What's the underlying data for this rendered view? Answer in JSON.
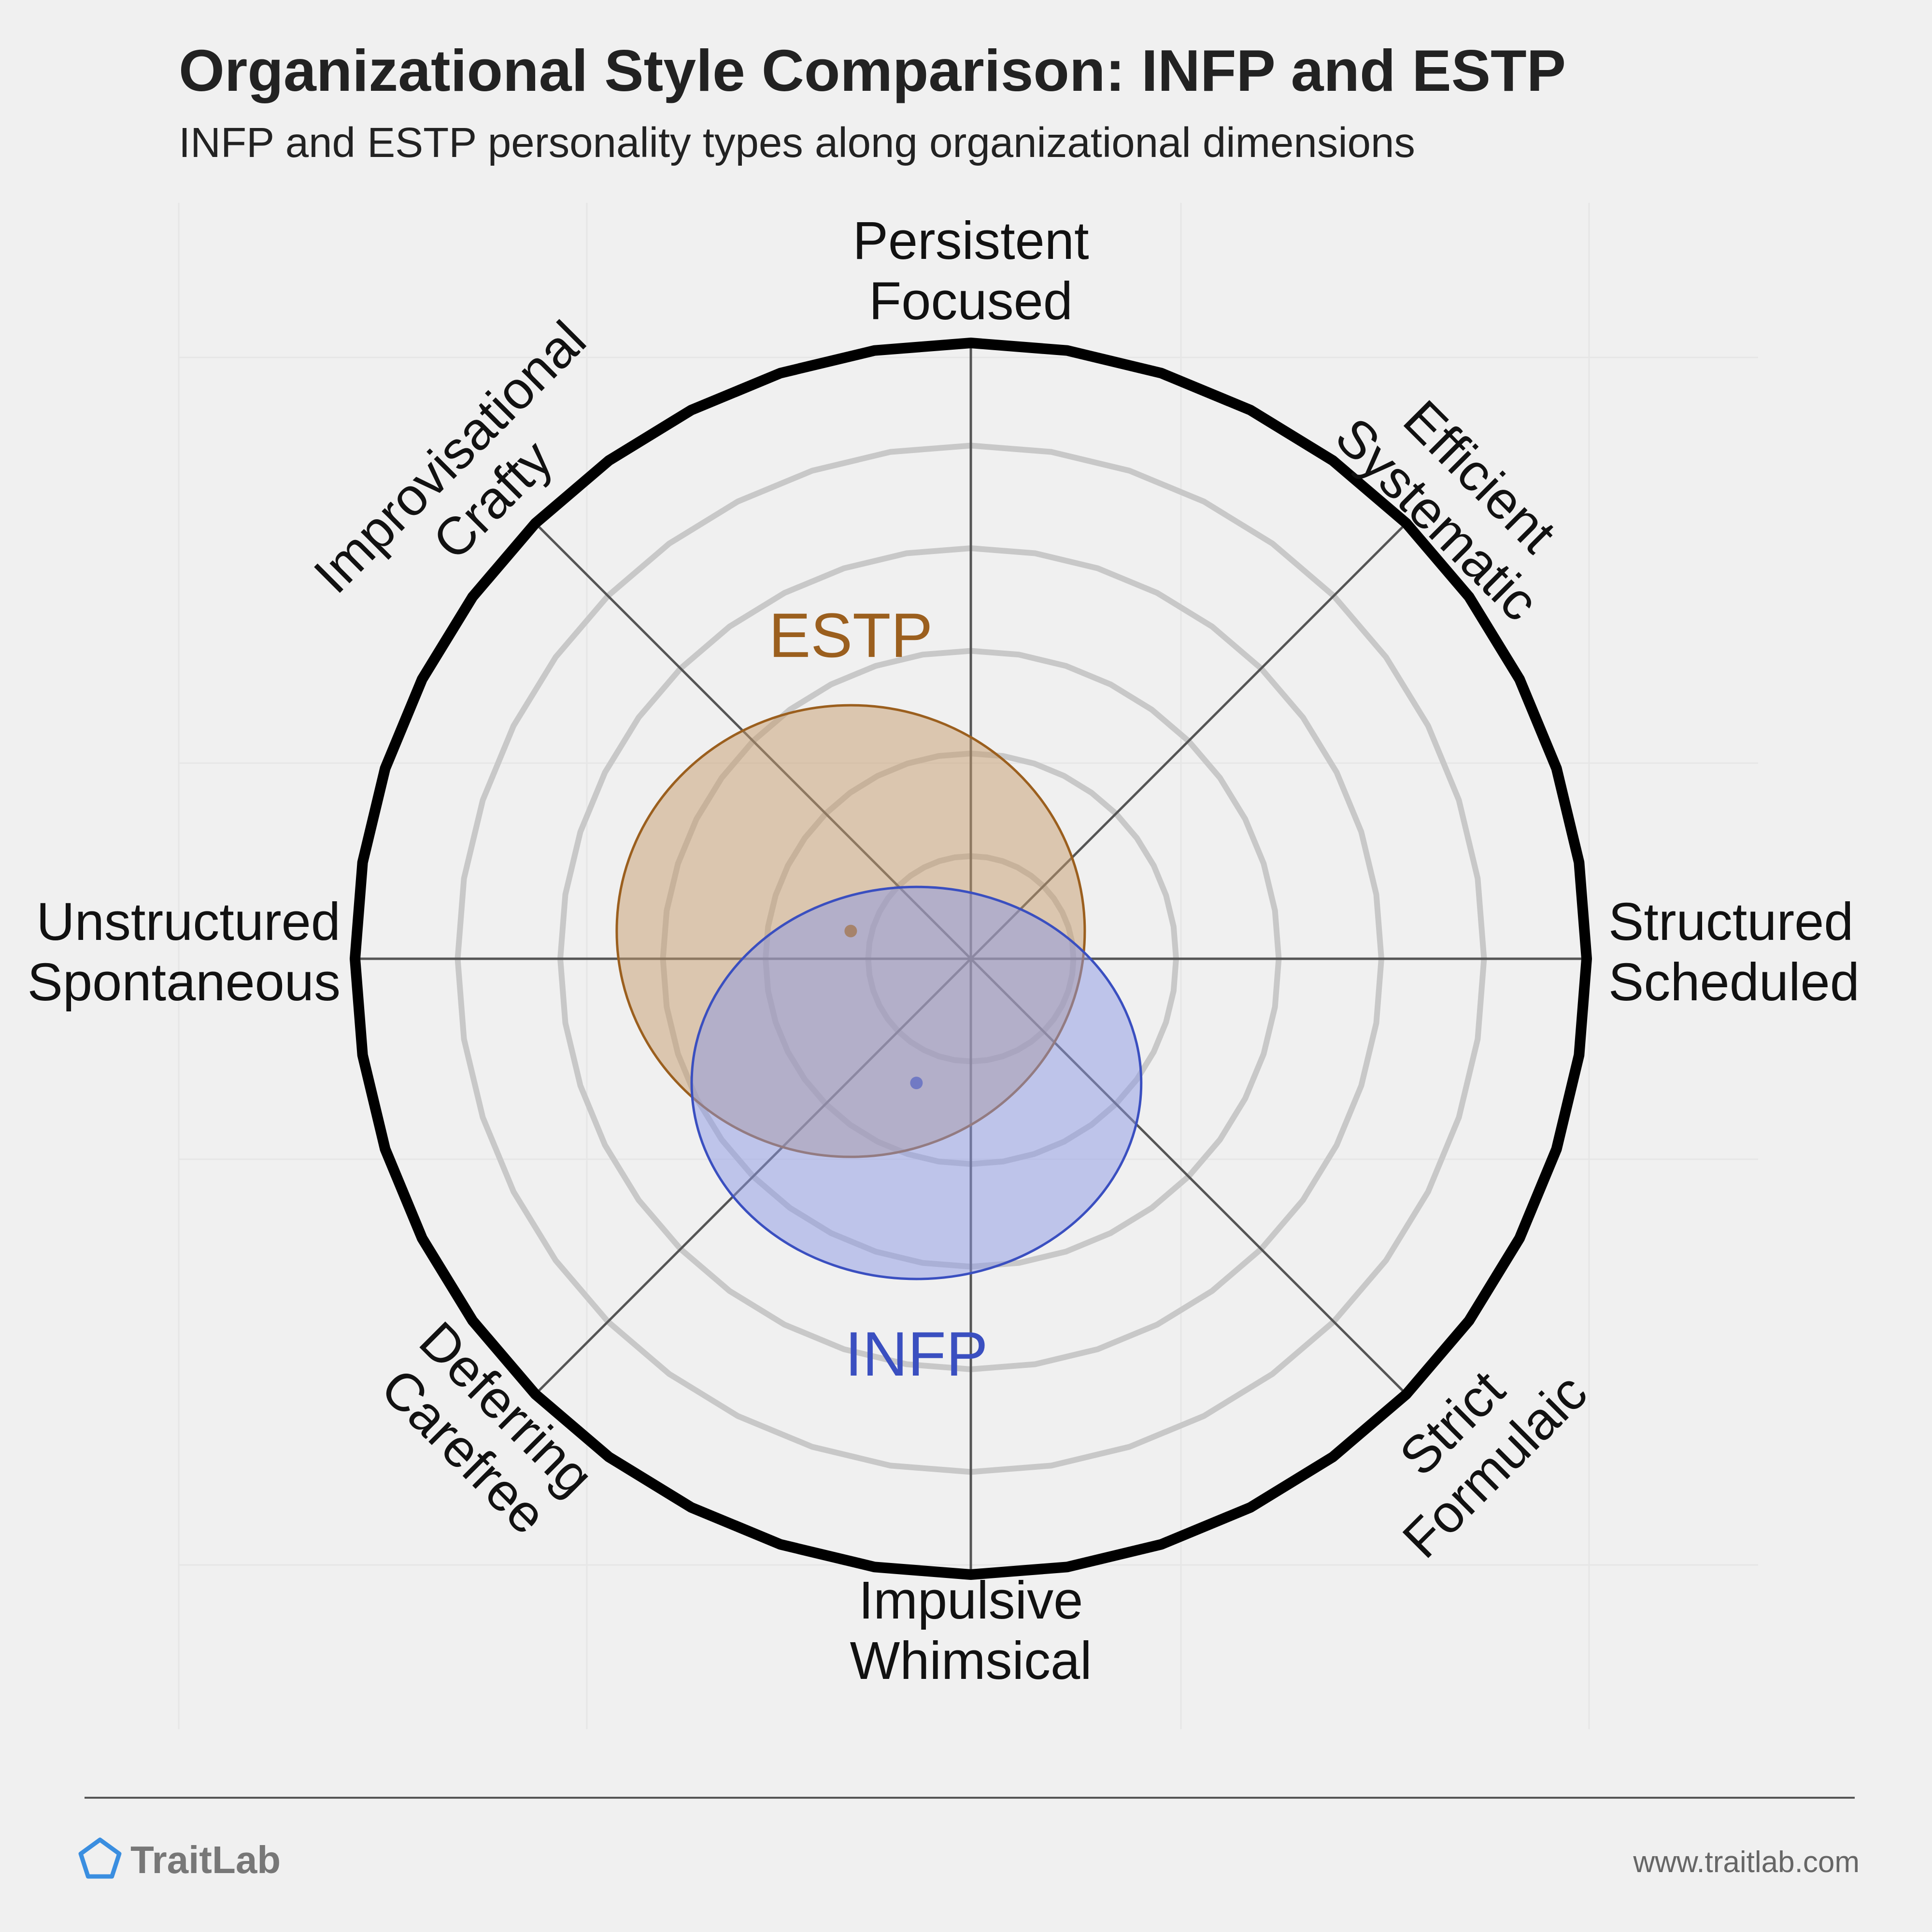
{
  "chart_data": {
    "type": "radar",
    "title": "Organizational Style Comparison: INFP and ESTP",
    "subtitle": "INFP and ESTP personality types along organizational dimensions",
    "axes": [
      {
        "name": "top",
        "label_lines": [
          "Persistent",
          "Focused"
        ]
      },
      {
        "name": "top-right",
        "label_lines": [
          "Efficient",
          "Systematic"
        ]
      },
      {
        "name": "right",
        "label_lines": [
          "Structured",
          "Scheduled"
        ]
      },
      {
        "name": "bottom-right",
        "label_lines": [
          "Strict",
          "Formulaic"
        ]
      },
      {
        "name": "bottom",
        "label_lines": [
          "Impulsive",
          "Whimsical"
        ]
      },
      {
        "name": "bottom-left",
        "label_lines": [
          "Deferring",
          "Carefree"
        ]
      },
      {
        "name": "left",
        "label_lines": [
          "Unstructured",
          "Spontaneous"
        ]
      },
      {
        "name": "top-left",
        "label_lines": [
          "Improvisational",
          "Crafty"
        ]
      }
    ],
    "x_axis": {
      "from": "Unstructured / Spontaneous",
      "to": "Structured / Scheduled",
      "range": [
        -6,
        6
      ]
    },
    "y_axis": {
      "from": "Impulsive / Whimsical",
      "to": "Persistent / Focused",
      "range": [
        -6,
        6
      ]
    },
    "grid_rings": 6,
    "series": [
      {
        "name": "ESTP",
        "center": {
          "x": -1.17,
          "y": 0.27
        },
        "radius_x": 2.28,
        "radius_y": 2.2,
        "color": "#9b5f1e",
        "fill": "#c69c6d"
      },
      {
        "name": "INFP",
        "center": {
          "x": -0.53,
          "y": -1.21
        },
        "radius_x": 2.19,
        "radius_y": 1.91,
        "color": "#3a4fc0",
        "fill": "#8b97e3"
      }
    ]
  },
  "footer": {
    "brand": "TraitLab",
    "url": "www.traitlab.com"
  },
  "colors": {
    "background": "#f0f0f0",
    "outer_ring": "#000000",
    "grid_ring": "#c8c8c8",
    "spoke": "#555555",
    "brand_icon": "#3a8ee0"
  }
}
